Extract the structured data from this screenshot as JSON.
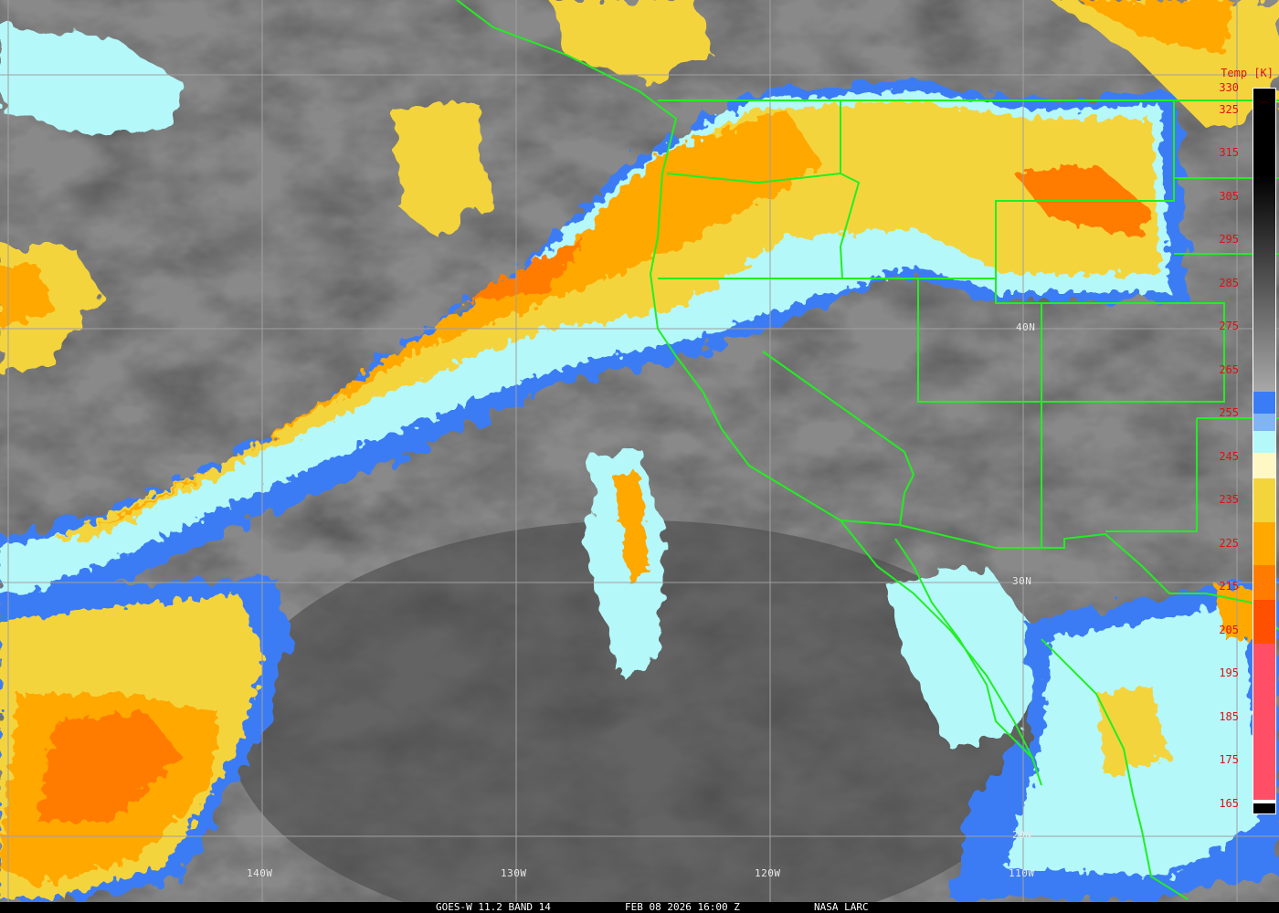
{
  "caption": {
    "satellite": "GOES-W 11.2 BAND 14",
    "datetime": "FEB 08 2026 16:00 Z",
    "source": "NASA LARC"
  },
  "grid_labels": {
    "lon": [
      "140W",
      "130W",
      "120W",
      "110W"
    ],
    "lat": [
      "40N",
      "30N",
      "20N"
    ]
  },
  "colorbar": {
    "title": "Temp [K]",
    "ticks": [
      "330",
      "325",
      "315",
      "305",
      "295",
      "285",
      "275",
      "265",
      "255",
      "245",
      "235",
      "225",
      "215",
      "205",
      "195",
      "185",
      "175",
      "165"
    ],
    "colors": {
      "blue": "#3a7cf5",
      "light_blue": "#80b4f5",
      "cyan": "#b4f8fa",
      "pale_yellow": "#fff8c4",
      "yellow": "#f4d43c",
      "orange": "#ffa800",
      "dark_orange": "#ff7c00",
      "red_orange": "#ff5000",
      "pink": "#ff4f66"
    }
  },
  "map_colors": {
    "boundaries": "#22ee22",
    "grid": "#a0a0a0"
  }
}
